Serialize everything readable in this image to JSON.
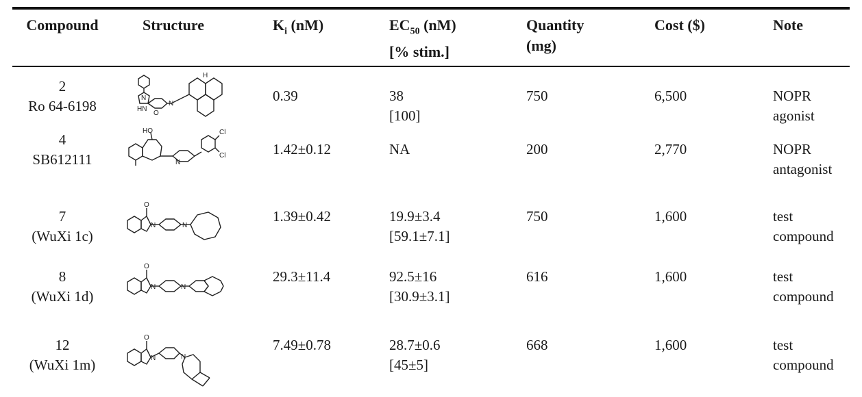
{
  "headers": {
    "compound": "Compound",
    "structure": "Structure",
    "ki_main": "K",
    "ki_sub": "i",
    "ki_unit": " (nM)",
    "ec_main": "EC",
    "ec_sub": "50",
    "ec_unit": " (nM)",
    "ec_line2": "[% stim.]",
    "qty_line1": "Quantity",
    "qty_line2": "(mg)",
    "cost": "Cost ($)",
    "note": "Note"
  },
  "rows": [
    {
      "id": "2",
      "name": "Ro 64-6198",
      "ki": "0.39",
      "ec": "38",
      "stim": "[100]",
      "qty": "750",
      "cost": "6,500",
      "note1": "NOPR",
      "note2": "agonist"
    },
    {
      "id": "4",
      "name": "SB612111",
      "ki": "1.42±0.12",
      "ec": "NA",
      "stim": "",
      "qty": "200",
      "cost": "2,770",
      "note1": "NOPR",
      "note2": "antagonist"
    },
    {
      "id": "7",
      "name": "(WuXi 1c)",
      "ki": "1.39±0.42",
      "ec": "19.9±3.4",
      "stim": "[59.1±7.1]",
      "qty": "750",
      "cost": "1,600",
      "note1": "test",
      "note2": "compound"
    },
    {
      "id": "8",
      "name": "(WuXi 1d)",
      "ki": "29.3±11.4",
      "ec": "92.5±16",
      "stim": "[30.9±3.1]",
      "qty": "616",
      "cost": "1,600",
      "note1": "test",
      "note2": "compound"
    },
    {
      "id": "12",
      "name": "(WuXi 1m)",
      "ki": "7.49±0.78",
      "ec": "28.7±0.6",
      "stim": "[45±5]",
      "qty": "668",
      "cost": "1,600",
      "note1": "test",
      "note2": "compound"
    }
  ],
  "structure_atoms": {
    "r0": {
      "n1": "N",
      "n2": "N",
      "hn": "HN",
      "o": "O",
      "h": "H"
    },
    "r1": {
      "ho": "HO",
      "n": "N",
      "cl1": "Cl",
      "cl2": "Cl"
    },
    "r2": {
      "o": "O",
      "n1": "N",
      "n2": "N"
    },
    "r3": {
      "o": "O",
      "n1": "N",
      "n2": "N"
    },
    "r4": {
      "o": "O",
      "n1": "N",
      "n2": "N"
    }
  }
}
